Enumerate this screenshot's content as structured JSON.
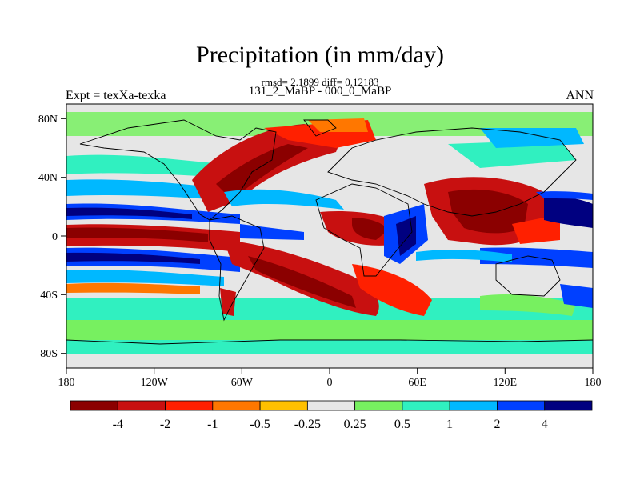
{
  "title": "Precipitation (in mm/day)",
  "stats_text": "rmsd= 2.1899 diff= 0.12183",
  "subtitle": "131_2_MaBP - 000_0_MaBP",
  "left_string": "Expt = texXa-texka",
  "right_string": "ANN",
  "map": {
    "projection": "cylindrical equidistant",
    "lon_range": [
      -180,
      180
    ],
    "lat_range": [
      -90,
      90
    ],
    "lon_ticks": [
      "180",
      "120W",
      "60W",
      "0",
      "60E",
      "120E",
      "180"
    ],
    "lat_ticks": [
      "80N",
      "40N",
      "0",
      "40S",
      "80S"
    ]
  },
  "colorbar": {
    "levels": [
      "-4",
      "-2",
      "-1",
      "-0.5",
      "-0.25",
      "0.25",
      "0.5",
      "1",
      "2",
      "4"
    ],
    "colors": [
      "#8b0000",
      "#c81010",
      "#ff2000",
      "#ff7700",
      "#ffc000",
      "#e6e6e6",
      "#77f060",
      "#30f0c0",
      "#00b8ff",
      "#0040ff",
      "#000080"
    ]
  }
}
